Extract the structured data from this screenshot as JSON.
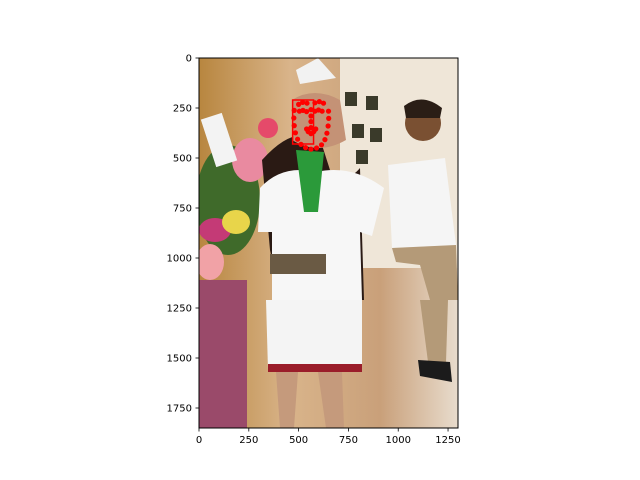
{
  "chart_data": {
    "type": "scatter",
    "title": "",
    "xlabel": "",
    "ylabel": "",
    "xlim": [
      0,
      1300
    ],
    "ylim": [
      1850,
      0
    ],
    "y_inverted": true,
    "grid": false,
    "legend": "none",
    "x_ticks": [
      0,
      250,
      500,
      750,
      1000,
      1250
    ],
    "y_ticks": [
      0,
      250,
      500,
      750,
      1000,
      1250,
      1500,
      1750
    ],
    "x_tick_labels": [
      "0",
      "250",
      "500",
      "750",
      "1000",
      "1250"
    ],
    "y_tick_labels": [
      "0",
      "250",
      "500",
      "750",
      "1000",
      "1250",
      "1500",
      "1750"
    ],
    "background_image": "photo-of-woman-in-white-uniform-with-green-scarf-at-trade-show",
    "face_box": {
      "x0": 470,
      "y0": 210,
      "x1": 575,
      "y1": 430,
      "color": "#ff0000"
    },
    "landmark_color": "#ff0000",
    "series": [
      {
        "values": [
          [
            478,
            262
          ],
          [
            476,
            300
          ],
          [
            478,
            338
          ],
          [
            484,
            374
          ],
          [
            495,
            406
          ],
          [
            512,
            432
          ],
          [
            535,
            448
          ],
          [
            562,
            456
          ],
          [
            590,
            450
          ],
          [
            615,
            434
          ],
          [
            632,
            408
          ],
          [
            642,
            376
          ],
          [
            648,
            340
          ],
          [
            651,
            302
          ],
          [
            650,
            266
          ],
          [
            500,
            232
          ],
          [
            520,
            222
          ],
          [
            542,
            226
          ],
          [
            582,
            224
          ],
          [
            604,
            218
          ],
          [
            625,
            226
          ],
          [
            562,
            258
          ],
          [
            562,
            290
          ],
          [
            562,
            318
          ],
          [
            504,
            266
          ],
          [
            522,
            262
          ],
          [
            540,
            268
          ],
          [
            582,
            266
          ],
          [
            600,
            260
          ],
          [
            618,
            266
          ],
          [
            540,
            355
          ],
          [
            562,
            348
          ],
          [
            586,
            355
          ],
          [
            562,
            378
          ],
          [
            548,
            368
          ],
          [
            576,
            368
          ]
        ]
      }
    ]
  }
}
